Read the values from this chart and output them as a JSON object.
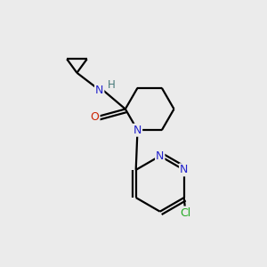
{
  "background_color": "#ebebeb",
  "atom_colors": {
    "C": "#000000",
    "N": "#2222cc",
    "O": "#cc2200",
    "Cl": "#22aa22",
    "H": "#447777"
  },
  "bond_color": "#000000",
  "figsize": [
    3.0,
    3.0
  ],
  "dpi": 100
}
